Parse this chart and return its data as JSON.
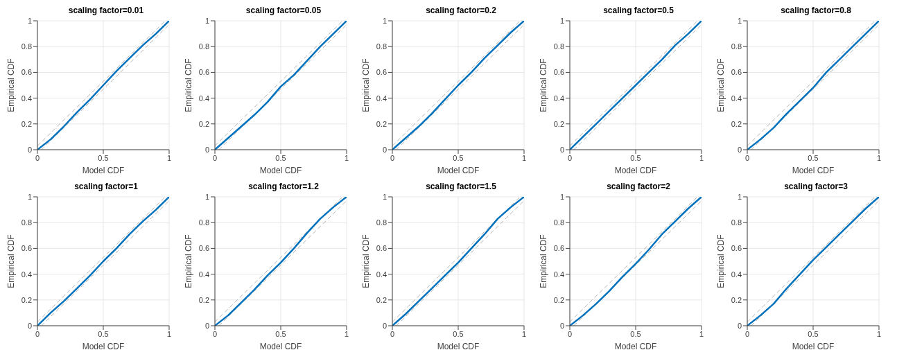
{
  "chart_data": [
    {
      "type": "line",
      "title": "scaling factor=0.01",
      "xlabel": "Model CDF",
      "ylabel": "Empirical CDF",
      "xlim": [
        0,
        1
      ],
      "ylim": [
        0,
        1
      ],
      "xticks": [
        0,
        0.5,
        1
      ],
      "yticks": [
        0,
        0.2,
        0.4,
        0.6,
        0.8,
        1
      ],
      "grid": true,
      "series": [
        {
          "color": "#b4b4b4",
          "line_style": "dashed",
          "x": [
            0,
            0.97
          ],
          "values": [
            0.03,
            1
          ]
        },
        {
          "color": "#b4b4b4",
          "line_style": "dashed",
          "x": [
            0.03,
            1
          ],
          "values": [
            0,
            0.97
          ]
        },
        {
          "color": "#0072bd",
          "line_style": "solid",
          "x": [
            0,
            0.1,
            0.2,
            0.3,
            0.4,
            0.5,
            0.6,
            0.7,
            0.8,
            0.9,
            1
          ],
          "values": [
            0,
            0.08,
            0.18,
            0.29,
            0.39,
            0.5,
            0.61,
            0.71,
            0.81,
            0.9,
            1
          ]
        }
      ]
    },
    {
      "type": "line",
      "title": "scaling factor=0.05",
      "xlabel": "Model CDF",
      "ylabel": "Empirical CDF",
      "xlim": [
        0,
        1
      ],
      "ylim": [
        0,
        1
      ],
      "xticks": [
        0,
        0.5,
        1
      ],
      "yticks": [
        0,
        0.2,
        0.4,
        0.6,
        0.8,
        1
      ],
      "grid": true,
      "series": [
        {
          "color": "#b4b4b4",
          "line_style": "dashed",
          "x": [
            0,
            0.97
          ],
          "values": [
            0.03,
            1
          ]
        },
        {
          "color": "#b4b4b4",
          "line_style": "dashed",
          "x": [
            0.03,
            1
          ],
          "values": [
            0,
            0.97
          ]
        },
        {
          "color": "#0072bd",
          "line_style": "solid",
          "x": [
            0,
            0.1,
            0.2,
            0.3,
            0.4,
            0.5,
            0.6,
            0.7,
            0.8,
            0.9,
            1
          ],
          "values": [
            0,
            0.09,
            0.18,
            0.27,
            0.37,
            0.49,
            0.58,
            0.69,
            0.8,
            0.9,
            1
          ]
        }
      ]
    },
    {
      "type": "line",
      "title": "scaling factor=0.2",
      "xlabel": "Model CDF",
      "ylabel": "Empirical CDF",
      "xlim": [
        0,
        1
      ],
      "ylim": [
        0,
        1
      ],
      "xticks": [
        0,
        0.5,
        1
      ],
      "yticks": [
        0,
        0.2,
        0.4,
        0.6,
        0.8,
        1
      ],
      "grid": true,
      "series": [
        {
          "color": "#b4b4b4",
          "line_style": "dashed",
          "x": [
            0,
            0.97
          ],
          "values": [
            0.03,
            1
          ]
        },
        {
          "color": "#b4b4b4",
          "line_style": "dashed",
          "x": [
            0.03,
            1
          ],
          "values": [
            0,
            0.97
          ]
        },
        {
          "color": "#0072bd",
          "line_style": "solid",
          "x": [
            0,
            0.1,
            0.2,
            0.3,
            0.4,
            0.5,
            0.6,
            0.7,
            0.8,
            0.9,
            1
          ],
          "values": [
            0,
            0.09,
            0.18,
            0.28,
            0.39,
            0.5,
            0.6,
            0.71,
            0.81,
            0.91,
            1
          ]
        }
      ]
    },
    {
      "type": "line",
      "title": "scaling factor=0.5",
      "xlabel": "Model CDF",
      "ylabel": "Empirical CDF",
      "xlim": [
        0,
        1
      ],
      "ylim": [
        0,
        1
      ],
      "xticks": [
        0,
        0.5,
        1
      ],
      "yticks": [
        0,
        0.2,
        0.4,
        0.6,
        0.8,
        1
      ],
      "grid": true,
      "series": [
        {
          "color": "#b4b4b4",
          "line_style": "dashed",
          "x": [
            0,
            0.97
          ],
          "values": [
            0.03,
            1
          ]
        },
        {
          "color": "#b4b4b4",
          "line_style": "dashed",
          "x": [
            0.03,
            1
          ],
          "values": [
            0,
            0.97
          ]
        },
        {
          "color": "#0072bd",
          "line_style": "solid",
          "x": [
            0,
            0.1,
            0.2,
            0.3,
            0.4,
            0.5,
            0.6,
            0.7,
            0.8,
            0.9,
            1
          ],
          "values": [
            0,
            0.1,
            0.2,
            0.3,
            0.4,
            0.5,
            0.6,
            0.7,
            0.81,
            0.9,
            1
          ]
        }
      ]
    },
    {
      "type": "line",
      "title": "scaling factor=0.8",
      "xlabel": "Model CDF",
      "ylabel": "Empirical CDF",
      "xlim": [
        0,
        1
      ],
      "ylim": [
        0,
        1
      ],
      "xticks": [
        0,
        0.5,
        1
      ],
      "yticks": [
        0,
        0.2,
        0.4,
        0.6,
        0.8,
        1
      ],
      "grid": true,
      "series": [
        {
          "color": "#b4b4b4",
          "line_style": "dashed",
          "x": [
            0,
            0.97
          ],
          "values": [
            0.03,
            1
          ]
        },
        {
          "color": "#b4b4b4",
          "line_style": "dashed",
          "x": [
            0.03,
            1
          ],
          "values": [
            0,
            0.97
          ]
        },
        {
          "color": "#0072bd",
          "line_style": "solid",
          "x": [
            0,
            0.1,
            0.2,
            0.3,
            0.4,
            0.5,
            0.6,
            0.7,
            0.8,
            0.9,
            1
          ],
          "values": [
            0,
            0.08,
            0.17,
            0.28,
            0.38,
            0.48,
            0.6,
            0.7,
            0.8,
            0.9,
            1
          ]
        }
      ]
    },
    {
      "type": "line",
      "title": "scaling factor=1",
      "xlabel": "Model CDF",
      "ylabel": "Empirical CDF",
      "xlim": [
        0,
        1
      ],
      "ylim": [
        0,
        1
      ],
      "xticks": [
        0,
        0.5,
        1
      ],
      "yticks": [
        0,
        0.2,
        0.4,
        0.6,
        0.8,
        1
      ],
      "grid": true,
      "series": [
        {
          "color": "#b4b4b4",
          "line_style": "dashed",
          "x": [
            0,
            0.97
          ],
          "values": [
            0.03,
            1
          ]
        },
        {
          "color": "#b4b4b4",
          "line_style": "dashed",
          "x": [
            0.03,
            1
          ],
          "values": [
            0,
            0.97
          ]
        },
        {
          "color": "#0072bd",
          "line_style": "solid",
          "x": [
            0,
            0.1,
            0.2,
            0.3,
            0.4,
            0.5,
            0.6,
            0.7,
            0.8,
            0.9,
            1
          ],
          "values": [
            0,
            0.1,
            0.19,
            0.29,
            0.39,
            0.5,
            0.6,
            0.71,
            0.81,
            0.9,
            1
          ]
        }
      ]
    },
    {
      "type": "line",
      "title": "scaling factor=1.2",
      "xlabel": "Model CDF",
      "ylabel": "Empirical CDF",
      "xlim": [
        0,
        1
      ],
      "ylim": [
        0,
        1
      ],
      "xticks": [
        0,
        0.5,
        1
      ],
      "yticks": [
        0,
        0.2,
        0.4,
        0.6,
        0.8,
        1
      ],
      "grid": true,
      "series": [
        {
          "color": "#b4b4b4",
          "line_style": "dashed",
          "x": [
            0,
            0.97
          ],
          "values": [
            0.03,
            1
          ]
        },
        {
          "color": "#b4b4b4",
          "line_style": "dashed",
          "x": [
            0.03,
            1
          ],
          "values": [
            0,
            0.97
          ]
        },
        {
          "color": "#0072bd",
          "line_style": "solid",
          "x": [
            0,
            0.1,
            0.2,
            0.3,
            0.4,
            0.5,
            0.6,
            0.7,
            0.8,
            0.9,
            1
          ],
          "values": [
            0,
            0.08,
            0.18,
            0.28,
            0.39,
            0.49,
            0.6,
            0.72,
            0.83,
            0.92,
            1
          ]
        }
      ]
    },
    {
      "type": "line",
      "title": "scaling factor=1.5",
      "xlabel": "Model CDF",
      "ylabel": "Empirical CDF",
      "xlim": [
        0,
        1
      ],
      "ylim": [
        0,
        1
      ],
      "xticks": [
        0,
        0.5,
        1
      ],
      "yticks": [
        0,
        0.2,
        0.4,
        0.6,
        0.8,
        1
      ],
      "grid": true,
      "series": [
        {
          "color": "#b4b4b4",
          "line_style": "dashed",
          "x": [
            0,
            0.97
          ],
          "values": [
            0.03,
            1
          ]
        },
        {
          "color": "#b4b4b4",
          "line_style": "dashed",
          "x": [
            0.03,
            1
          ],
          "values": [
            0,
            0.97
          ]
        },
        {
          "color": "#0072bd",
          "line_style": "solid",
          "x": [
            0,
            0.1,
            0.2,
            0.3,
            0.4,
            0.5,
            0.6,
            0.7,
            0.8,
            0.9,
            1
          ],
          "values": [
            0,
            0.09,
            0.19,
            0.29,
            0.39,
            0.49,
            0.6,
            0.71,
            0.83,
            0.92,
            1
          ]
        }
      ]
    },
    {
      "type": "line",
      "title": "scaling factor=2",
      "xlabel": "Model CDF",
      "ylabel": "Empirical CDF",
      "xlim": [
        0,
        1
      ],
      "ylim": [
        0,
        1
      ],
      "xticks": [
        0,
        0.5,
        1
      ],
      "yticks": [
        0,
        0.2,
        0.4,
        0.6,
        0.8,
        1
      ],
      "grid": true,
      "series": [
        {
          "color": "#b4b4b4",
          "line_style": "dashed",
          "x": [
            0,
            0.97
          ],
          "values": [
            0.03,
            1
          ]
        },
        {
          "color": "#b4b4b4",
          "line_style": "dashed",
          "x": [
            0.03,
            1
          ],
          "values": [
            0,
            0.97
          ]
        },
        {
          "color": "#0072bd",
          "line_style": "solid",
          "x": [
            0,
            0.1,
            0.2,
            0.3,
            0.4,
            0.5,
            0.6,
            0.7,
            0.8,
            0.9,
            1
          ],
          "values": [
            0,
            0.08,
            0.17,
            0.27,
            0.38,
            0.48,
            0.59,
            0.71,
            0.81,
            0.91,
            1
          ]
        }
      ]
    },
    {
      "type": "line",
      "title": "scaling factor=3",
      "xlabel": "Model CDF",
      "ylabel": "Empirical CDF",
      "xlim": [
        0,
        1
      ],
      "ylim": [
        0,
        1
      ],
      "xticks": [
        0,
        0.5,
        1
      ],
      "yticks": [
        0,
        0.2,
        0.4,
        0.6,
        0.8,
        1
      ],
      "grid": true,
      "series": [
        {
          "color": "#b4b4b4",
          "line_style": "dashed",
          "x": [
            0,
            0.97
          ],
          "values": [
            0.03,
            1
          ]
        },
        {
          "color": "#b4b4b4",
          "line_style": "dashed",
          "x": [
            0.03,
            1
          ],
          "values": [
            0,
            0.97
          ]
        },
        {
          "color": "#0072bd",
          "line_style": "solid",
          "x": [
            0,
            0.1,
            0.2,
            0.3,
            0.4,
            0.5,
            0.6,
            0.7,
            0.8,
            0.9,
            1
          ],
          "values": [
            0,
            0.08,
            0.17,
            0.29,
            0.4,
            0.51,
            0.61,
            0.71,
            0.81,
            0.91,
            1
          ]
        }
      ]
    }
  ]
}
